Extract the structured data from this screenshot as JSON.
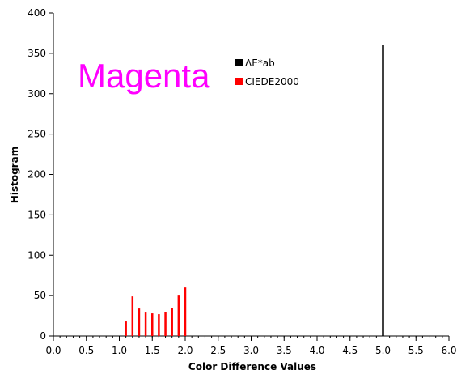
{
  "chart_data": {
    "type": "bar",
    "title": "",
    "annotation": {
      "text": "Magenta",
      "color": "#ff00ff"
    },
    "xlabel": "Color Difference Values",
    "ylabel": "Histogram",
    "xlim": [
      0.0,
      6.0
    ],
    "ylim": [
      0,
      400
    ],
    "x_ticks": [
      "0.0",
      "0.5",
      "1.0",
      "1.5",
      "2.0",
      "2.5",
      "3.0",
      "3.5",
      "4.0",
      "4.5",
      "5.0",
      "5.5",
      "6.0"
    ],
    "y_ticks": [
      "0",
      "50",
      "100",
      "150",
      "200",
      "250",
      "300",
      "350",
      "400"
    ],
    "x_minor_step": 0.1,
    "grid": false,
    "legend": {
      "placement": "top-center"
    },
    "series": [
      {
        "name": "ΔE*ab",
        "color": "#000000",
        "points": [
          {
            "x": 5.0,
            "y": 360
          }
        ]
      },
      {
        "name": "CIEDE2000",
        "color": "#ff0000",
        "points": [
          {
            "x": 1.1,
            "y": 18
          },
          {
            "x": 1.2,
            "y": 49
          },
          {
            "x": 1.3,
            "y": 34
          },
          {
            "x": 1.4,
            "y": 29
          },
          {
            "x": 1.5,
            "y": 28
          },
          {
            "x": 1.6,
            "y": 27
          },
          {
            "x": 1.7,
            "y": 30
          },
          {
            "x": 1.8,
            "y": 35
          },
          {
            "x": 1.9,
            "y": 50
          },
          {
            "x": 2.0,
            "y": 60
          }
        ]
      }
    ]
  }
}
